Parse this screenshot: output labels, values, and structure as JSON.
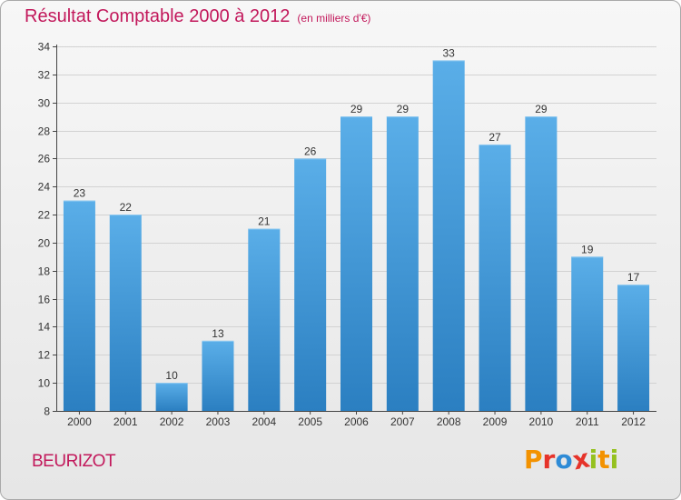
{
  "title": "Résultat Comptable 2000 à 2012",
  "title_unit": "(en milliers d'€)",
  "town": "BEURIZOT",
  "logo": {
    "text": "Proxiti",
    "letters": [
      {
        "ch": "P",
        "color": "#f39200"
      },
      {
        "ch": "r",
        "color": "#e6332a"
      },
      {
        "ch": "o",
        "color": "#2e8bd6"
      },
      {
        "ch": "x",
        "color": "#e6332a"
      },
      {
        "ch": "i",
        "color": "#95c11f"
      },
      {
        "ch": "t",
        "color": "#f39200"
      },
      {
        "ch": "i",
        "color": "#95c11f"
      }
    ]
  },
  "colors": {
    "bar_top": "#5aaee8",
    "bar_bottom": "#2b7fc1",
    "title": "#c2185b"
  },
  "chart_data": {
    "type": "bar",
    "title": "Résultat Comptable 2000 à 2012",
    "subtitle": "(en milliers d'€)",
    "xlabel": "",
    "ylabel": "",
    "ylim": [
      8,
      34
    ],
    "yticks": [
      8,
      10,
      12,
      14,
      16,
      18,
      20,
      22,
      24,
      26,
      28,
      30,
      32,
      34
    ],
    "grid": true,
    "categories": [
      "2000",
      "2001",
      "2002",
      "2003",
      "2004",
      "2005",
      "2006",
      "2007",
      "2008",
      "2009",
      "2010",
      "2011",
      "2012"
    ],
    "values": [
      23,
      22,
      10,
      13,
      21,
      26,
      29,
      29,
      33,
      27,
      29,
      19,
      17
    ],
    "data_labels": [
      "23",
      "22",
      "10",
      "13",
      "21",
      "26",
      "29",
      "29",
      "33",
      "27",
      "29",
      "19",
      "17"
    ]
  }
}
